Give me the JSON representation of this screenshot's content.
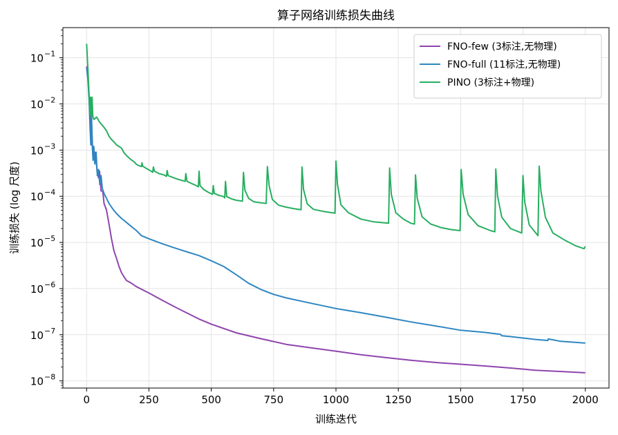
{
  "chart_data": {
    "type": "line",
    "title": "算子网络训练损失曲线",
    "xlabel": "训练迭代",
    "ylabel": "训练损失 (log 尺度)",
    "yscale": "log",
    "xlim": [
      -95,
      2095
    ],
    "ylim": [
      7e-09,
      0.45
    ],
    "xticks": [
      0,
      250,
      500,
      750,
      1000,
      1250,
      1500,
      1750,
      2000
    ],
    "xtick_labels": [
      "0",
      "250",
      "500",
      "750",
      "1000",
      "1250",
      "1500",
      "1750",
      "2000"
    ],
    "yticks": [
      {
        "value": 1e-08,
        "base": "10",
        "exp": "−8"
      },
      {
        "value": 1e-07,
        "base": "10",
        "exp": "−7"
      },
      {
        "value": 1e-06,
        "base": "10",
        "exp": "−6"
      },
      {
        "value": 1e-05,
        "base": "10",
        "exp": "−5"
      },
      {
        "value": 0.0001,
        "base": "10",
        "exp": "−4"
      },
      {
        "value": 0.001,
        "base": "10",
        "exp": "−3"
      },
      {
        "value": 0.01,
        "base": "10",
        "exp": "−2"
      },
      {
        "value": 0.1,
        "base": "10",
        "exp": "−1"
      }
    ],
    "grid": true,
    "legend_position": "top-right",
    "series": [
      {
        "name": "FNO-few (3标注,无物理)",
        "color": "#8e44ad",
        "points": [
          [
            0,
            0.065
          ],
          [
            5,
            0.04
          ],
          [
            10,
            0.015
          ],
          [
            15,
            0.005
          ],
          [
            18,
            0.0013
          ],
          [
            20,
            0.0035
          ],
          [
            25,
            0.0008
          ],
          [
            28,
            0.0012
          ],
          [
            32,
            0.0006
          ],
          [
            36,
            0.0009
          ],
          [
            42,
            0.00035
          ],
          [
            48,
            0.00025
          ],
          [
            52,
            0.00035
          ],
          [
            58,
            0.00013
          ],
          [
            65,
            0.00013
          ],
          [
            70,
            7e-05
          ],
          [
            80,
            5e-05
          ],
          [
            90,
            2.5e-05
          ],
          [
            100,
            1.2e-05
          ],
          [
            110,
            6.5e-06
          ],
          [
            120,
            4.5e-06
          ],
          [
            130,
            3e-06
          ],
          [
            140,
            2.2e-06
          ],
          [
            150,
            1.8e-06
          ],
          [
            160,
            1.5e-06
          ],
          [
            180,
            1.3e-06
          ],
          [
            200,
            1.1e-06
          ],
          [
            250,
            8e-07
          ],
          [
            300,
            5.7e-07
          ],
          [
            350,
            4.1e-07
          ],
          [
            400,
            3e-07
          ],
          [
            450,
            2.2e-07
          ],
          [
            500,
            1.7e-07
          ],
          [
            600,
            1.1e-07
          ],
          [
            700,
            8.2e-08
          ],
          [
            800,
            6.2e-08
          ],
          [
            900,
            5.2e-08
          ],
          [
            1000,
            4.4e-08
          ],
          [
            1100,
            3.7e-08
          ],
          [
            1200,
            3.2e-08
          ],
          [
            1300,
            2.8e-08
          ],
          [
            1400,
            2.5e-08
          ],
          [
            1500,
            2.3e-08
          ],
          [
            1600,
            2.1e-08
          ],
          [
            1700,
            1.9e-08
          ],
          [
            1800,
            1.7e-08
          ],
          [
            1900,
            1.6e-08
          ],
          [
            2000,
            1.5e-08
          ]
        ]
      },
      {
        "name": "FNO-full (11标注,无物理)",
        "color": "#2e86c1",
        "points": [
          [
            0,
            0.06
          ],
          [
            5,
            0.035
          ],
          [
            10,
            0.012
          ],
          [
            14,
            0.003
          ],
          [
            17,
            0.0013
          ],
          [
            20,
            0.005
          ],
          [
            23,
            0.0012
          ],
          [
            26,
            0.0006
          ],
          [
            29,
            0.0012
          ],
          [
            33,
            0.0005
          ],
          [
            38,
            0.0009
          ],
          [
            43,
            0.00028
          ],
          [
            48,
            0.00038
          ],
          [
            53,
            0.00018
          ],
          [
            58,
            0.00028
          ],
          [
            63,
            0.00015
          ],
          [
            70,
            0.000115
          ],
          [
            80,
            9e-05
          ],
          [
            90,
            7e-05
          ],
          [
            100,
            5.8e-05
          ],
          [
            110,
            4.9e-05
          ],
          [
            120,
            4.2e-05
          ],
          [
            140,
            3.3e-05
          ],
          [
            160,
            2.7e-05
          ],
          [
            180,
            2.2e-05
          ],
          [
            200,
            1.8e-05
          ],
          [
            220,
            1.4e-05
          ],
          [
            250,
            1.2e-05
          ],
          [
            300,
            9.5e-06
          ],
          [
            350,
            7.7e-06
          ],
          [
            400,
            6.3e-06
          ],
          [
            450,
            5.2e-06
          ],
          [
            500,
            4e-06
          ],
          [
            550,
            3e-06
          ],
          [
            600,
            2e-06
          ],
          [
            650,
            1.3e-06
          ],
          [
            700,
            9.5e-07
          ],
          [
            750,
            7.5e-07
          ],
          [
            800,
            6.3e-07
          ],
          [
            900,
            4.8e-07
          ],
          [
            1000,
            3.7e-07
          ],
          [
            1100,
            3e-07
          ],
          [
            1200,
            2.4e-07
          ],
          [
            1300,
            1.9e-07
          ],
          [
            1400,
            1.55e-07
          ],
          [
            1500,
            1.25e-07
          ],
          [
            1600,
            1.12e-07
          ],
          [
            1660,
            1.02e-07
          ],
          [
            1665,
            9.5e-08
          ],
          [
            1700,
            9.1e-08
          ],
          [
            1800,
            7.9e-08
          ],
          [
            1850,
            7.5e-08
          ],
          [
            1852,
            8.1e-08
          ],
          [
            1900,
            7.2e-08
          ],
          [
            2000,
            6.6e-08
          ]
        ]
      },
      {
        "name": "PINO (3标注+物理)",
        "color": "#27ae60",
        "points": [
          [
            0,
            0.2
          ],
          [
            5,
            0.06
          ],
          [
            10,
            0.015
          ],
          [
            13,
            0.006
          ],
          [
            16,
            0.014
          ],
          [
            19,
            0.005
          ],
          [
            22,
            0.014
          ],
          [
            25,
            0.0052
          ],
          [
            30,
            0.0046
          ],
          [
            35,
            0.0049
          ],
          [
            40,
            0.0052
          ],
          [
            45,
            0.0047
          ],
          [
            50,
            0.0042
          ],
          [
            60,
            0.0036
          ],
          [
            70,
            0.0031
          ],
          [
            80,
            0.0026
          ],
          [
            90,
            0.002
          ],
          [
            100,
            0.0017
          ],
          [
            110,
            0.0015
          ],
          [
            120,
            0.0013
          ],
          [
            130,
            0.0012
          ],
          [
            140,
            0.0011
          ],
          [
            150,
            0.00088
          ],
          [
            160,
            0.00076
          ],
          [
            170,
            0.00068
          ],
          [
            180,
            0.00061
          ],
          [
            190,
            0.00056
          ],
          [
            200,
            0.00049
          ],
          [
            210,
            0.00046
          ],
          [
            220,
            0.00044
          ],
          [
            222,
            0.00053
          ],
          [
            225,
            0.00045
          ],
          [
            240,
            0.0004
          ],
          [
            255,
            0.00036
          ],
          [
            265,
            0.00033
          ],
          [
            268,
            0.00043
          ],
          [
            272,
            0.00035
          ],
          [
            290,
            0.00031
          ],
          [
            310,
            0.00029
          ],
          [
            320,
            0.00027
          ],
          [
            323,
            0.00036
          ],
          [
            327,
            0.00028
          ],
          [
            350,
            0.00025
          ],
          [
            370,
            0.00023
          ],
          [
            395,
            0.00021
          ],
          [
            398,
            0.00031
          ],
          [
            403,
            0.00021
          ],
          [
            420,
            0.00019
          ],
          [
            440,
            0.00017
          ],
          [
            448,
            0.00016
          ],
          [
            451,
            0.00035
          ],
          [
            455,
            0.00017
          ],
          [
            470,
            0.00014
          ],
          [
            490,
            0.00012
          ],
          [
            505,
            0.00011
          ],
          [
            508,
            0.00017
          ],
          [
            512,
            0.000115
          ],
          [
            530,
            0.000105
          ],
          [
            550,
            9.8e-05
          ],
          [
            554,
            9.2e-05
          ],
          [
            557,
            0.00021
          ],
          [
            562,
            9.8e-05
          ],
          [
            580,
            8.8e-05
          ],
          [
            600,
            8.2e-05
          ],
          [
            625,
            7.8e-05
          ],
          [
            629,
            0.00033
          ],
          [
            635,
            0.000135
          ],
          [
            650,
            9e-05
          ],
          [
            670,
            7.6e-05
          ],
          [
            700,
            7.2e-05
          ],
          [
            720,
            7e-05
          ],
          [
            725,
            0.00044
          ],
          [
            732,
            0.00017
          ],
          [
            745,
            8.5e-05
          ],
          [
            770,
            6.4e-05
          ],
          [
            800,
            5.8e-05
          ],
          [
            830,
            5.4e-05
          ],
          [
            860,
            5.1e-05
          ],
          [
            864,
            0.00043
          ],
          [
            870,
            0.00014
          ],
          [
            885,
            6.8e-05
          ],
          [
            910,
            5.2e-05
          ],
          [
            950,
            4.7e-05
          ],
          [
            996,
            4.3e-05
          ],
          [
            1000,
            0.00058
          ],
          [
            1006,
            0.00018
          ],
          [
            1020,
            6.5e-05
          ],
          [
            1050,
            4.4e-05
          ],
          [
            1100,
            3.2e-05
          ],
          [
            1150,
            2.8e-05
          ],
          [
            1211,
            2.6e-05
          ],
          [
            1215,
            0.00041
          ],
          [
            1222,
            0.00011
          ],
          [
            1240,
            4.4e-05
          ],
          [
            1270,
            3.2e-05
          ],
          [
            1300,
            2.6e-05
          ],
          [
            1315,
            2.5e-05
          ],
          [
            1319,
            0.00029
          ],
          [
            1326,
            9e-05
          ],
          [
            1345,
            3.6e-05
          ],
          [
            1380,
            2.5e-05
          ],
          [
            1420,
            2.1e-05
          ],
          [
            1460,
            1.9e-05
          ],
          [
            1498,
            1.8e-05
          ],
          [
            1502,
            0.00038
          ],
          [
            1510,
            0.00011
          ],
          [
            1530,
            4e-05
          ],
          [
            1570,
            2.3e-05
          ],
          [
            1620,
            1.8e-05
          ],
          [
            1637,
            1.7e-05
          ],
          [
            1641,
            0.00039
          ],
          [
            1648,
            0.0001
          ],
          [
            1665,
            3.5e-05
          ],
          [
            1700,
            2e-05
          ],
          [
            1745,
            1.6e-05
          ],
          [
            1750,
            0.00028
          ],
          [
            1757,
            7.5e-05
          ],
          [
            1775,
            2.4e-05
          ],
          [
            1810,
            1.4e-05
          ],
          [
            1815,
            0.00045
          ],
          [
            1822,
            0.00013
          ],
          [
            1840,
            3.5e-05
          ],
          [
            1870,
            1.6e-05
          ],
          [
            1920,
            1.1e-05
          ],
          [
            1960,
            8.5e-06
          ],
          [
            1995,
            7.3e-06
          ],
          [
            2000,
            8.2e-06
          ]
        ]
      }
    ]
  }
}
